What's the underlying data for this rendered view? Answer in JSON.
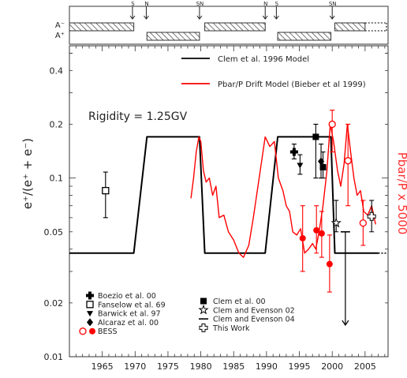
{
  "chart_data": {
    "type": "scatter",
    "y_scale": "log",
    "xlim": [
      1960,
      2008.5
    ],
    "ylim": [
      0.01,
      0.55
    ],
    "ylabel": "e⁺/(e⁺ + e⁻)",
    "ylabel_right": "Pbar/P x 5000",
    "annotation": "Rigidity = 1.25GV",
    "x_ticks": [
      1965,
      1970,
      1975,
      1980,
      1985,
      1990,
      1995,
      2000,
      2005
    ],
    "y_ticks": [
      {
        "v": 0.01,
        "label": "0.01"
      },
      {
        "v": 0.02,
        "label": "0.02"
      },
      {
        "v": 0.05,
        "label": "0.05"
      },
      {
        "v": 0.1,
        "label": "0.1"
      },
      {
        "v": 0.2,
        "label": "0.2"
      },
      {
        "v": 0.4,
        "label": "0.4"
      }
    ],
    "polarity": {
      "labels": [
        "A⁻",
        "A⁺"
      ],
      "markers": [
        {
          "year": 1969.6,
          "label": "S"
        },
        {
          "year": 1971.7,
          "label": "N"
        },
        {
          "year": 1979.8,
          "label": "SN"
        },
        {
          "year": 1989.8,
          "label": "N"
        },
        {
          "year": 1991.5,
          "label": "S"
        },
        {
          "year": 2000.0,
          "label": "SN"
        }
      ],
      "bars": [
        {
          "start": 1960,
          "end": 1969.8,
          "row": "upper"
        },
        {
          "start": 1971.8,
          "end": 1979.8,
          "row": "lower"
        },
        {
          "start": 1980.6,
          "end": 1989.8,
          "row": "upper"
        },
        {
          "start": 1991.7,
          "end": 1999.8,
          "row": "lower"
        },
        {
          "start": 2000.4,
          "end": 2005.0,
          "row": "upper"
        }
      ],
      "dotted_from": 2005.0
    },
    "legend_top": [
      {
        "label": "Clem et al. 1996 Model",
        "color": "#000000"
      },
      {
        "label": "Pbar/P Drift Model (Bieber et al 1999)",
        "color": "#ff0000"
      }
    ],
    "legend_bottom_left": [
      {
        "label": "Boezio et al. 00",
        "symbol": "cross"
      },
      {
        "label": "Fanselow et al. 69",
        "symbol": "square-open"
      },
      {
        "label": "Barwick et al. 97",
        "symbol": "triangle-down"
      },
      {
        "label": "Alcaraz et al. 00",
        "symbol": "diamond"
      },
      {
        "label": "BESS",
        "symbol": "circles-red"
      }
    ],
    "legend_bottom_right": [
      {
        "label": "Clem et al. 00",
        "symbol": "square-filled"
      },
      {
        "label": "Clem and Evenson 02",
        "symbol": "star"
      },
      {
        "label": "Clem and Evenson 04",
        "symbol": "dash"
      },
      {
        "label": "This Work",
        "symbol": "cross-open"
      }
    ],
    "series": [
      {
        "name": "Clem et al. 1996 Model",
        "color": "#000000",
        "points": [
          [
            1960,
            0.038
          ],
          [
            1969.8,
            0.038
          ],
          [
            1971.8,
            0.17
          ],
          [
            1979.8,
            0.17
          ],
          [
            1980.6,
            0.038
          ],
          [
            1989.8,
            0.038
          ],
          [
            1991.7,
            0.17
          ],
          [
            1999.8,
            0.17
          ],
          [
            2000.4,
            0.038
          ],
          [
            2007,
            0.038
          ]
        ],
        "dotted_to": 2008.5
      },
      {
        "name": "Pbar/P Drift Model (Bieber et al 1999)",
        "color": "#ff0000",
        "points": [
          [
            1978.5,
            0.077
          ],
          [
            1978.9,
            0.1
          ],
          [
            1979.3,
            0.14
          ],
          [
            1979.7,
            0.17
          ],
          [
            1980.0,
            0.16
          ],
          [
            1980.4,
            0.11
          ],
          [
            1980.8,
            0.095
          ],
          [
            1981.3,
            0.1
          ],
          [
            1981.8,
            0.08
          ],
          [
            1982.3,
            0.09
          ],
          [
            1982.8,
            0.06
          ],
          [
            1983.5,
            0.062
          ],
          [
            1984.2,
            0.05
          ],
          [
            1985.0,
            0.045
          ],
          [
            1985.8,
            0.038
          ],
          [
            1986.5,
            0.036
          ],
          [
            1987.3,
            0.042
          ],
          [
            1988.0,
            0.06
          ],
          [
            1988.6,
            0.085
          ],
          [
            1989.2,
            0.12
          ],
          [
            1989.8,
            0.17
          ],
          [
            1990.5,
            0.15
          ],
          [
            1991.2,
            0.16
          ],
          [
            1991.8,
            0.1
          ],
          [
            1992.5,
            0.085
          ],
          [
            1993.0,
            0.07
          ],
          [
            1993.5,
            0.065
          ],
          [
            1994.0,
            0.05
          ],
          [
            1994.6,
            0.048
          ],
          [
            1995.2,
            0.052
          ],
          [
            1995.8,
            0.038
          ],
          [
            1996.4,
            0.04
          ],
          [
            1997.0,
            0.043
          ],
          [
            1997.5,
            0.04
          ],
          [
            1998.0,
            0.05
          ],
          [
            1998.6,
            0.07
          ],
          [
            1999.2,
            0.11
          ],
          [
            1999.7,
            0.2
          ],
          [
            2000.2,
            0.16
          ],
          [
            2000.8,
            0.11
          ],
          [
            2001.3,
            0.09
          ],
          [
            2001.8,
            0.12
          ],
          [
            2002.3,
            0.2
          ],
          [
            2002.8,
            0.14
          ],
          [
            2003.3,
            0.1
          ],
          [
            2003.8,
            0.08
          ],
          [
            2004.3,
            0.085
          ],
          [
            2004.8,
            0.065
          ],
          [
            2005.4,
            0.062
          ],
          [
            2006.0,
            0.07
          ],
          [
            2006.6,
            0.055
          ]
        ]
      }
    ],
    "points": [
      {
        "source": "Fanselow et al. 69",
        "symbol": "square-open",
        "x": 1965.5,
        "y": 0.085,
        "lo": 0.06,
        "hi": 0.108
      },
      {
        "source": "Boezio et al. 00",
        "symbol": "cross",
        "x": 1994.2,
        "y": 0.14,
        "lo": 0.128,
        "hi": 0.155
      },
      {
        "source": "Barwick et al. 97",
        "symbol": "triangle-down",
        "x": 1995.1,
        "y": 0.118,
        "lo": 0.105,
        "hi": 0.135
      },
      {
        "source": "Clem et al. 00",
        "symbol": "square-filled",
        "x": 1997.5,
        "y": 0.17,
        "lo": 0.1,
        "hi": 0.2
      },
      {
        "source": "Alcaraz et al. 00",
        "symbol": "diamond",
        "x": 1998.3,
        "y": 0.124,
        "lo": 0.1,
        "hi": 0.155
      },
      {
        "source": "Clem et al. 00",
        "symbol": "square-filled",
        "x": 1998.6,
        "y": 0.115,
        "lo": 0.1,
        "hi": 0.14
      },
      {
        "source": "Clem and Evenson 02",
        "symbol": "star",
        "x": 2000.6,
        "y": 0.056,
        "lo": 0.05,
        "hi": 0.075
      },
      {
        "source": "Clem and Evenson 04",
        "symbol": "dash",
        "x": 2002.0,
        "y": 0.05,
        "upper_limit": true
      },
      {
        "source": "This Work",
        "symbol": "cross-open",
        "x": 2006.0,
        "y": 0.061,
        "lo": 0.05,
        "hi": 0.075
      },
      {
        "source": "BESS",
        "symbol": "circle-open",
        "x": 2000.0,
        "y": 0.2,
        "lo": 0.14,
        "hi": 0.24
      },
      {
        "source": "BESS",
        "symbol": "circle-open",
        "x": 2002.4,
        "y": 0.125,
        "lo": 0.07,
        "hi": 0.2
      },
      {
        "source": "BESS",
        "symbol": "circle-open",
        "x": 2004.7,
        "y": 0.056,
        "lo": 0.042,
        "hi": 0.075
      },
      {
        "source": "BESS",
        "symbol": "circle-filled",
        "x": 1995.5,
        "y": 0.046,
        "lo": 0.03,
        "hi": 0.07
      },
      {
        "source": "BESS",
        "symbol": "circle-filled",
        "x": 1997.6,
        "y": 0.051,
        "lo": 0.038,
        "hi": 0.07
      },
      {
        "source": "BESS",
        "symbol": "circle-filled",
        "x": 1998.4,
        "y": 0.049,
        "lo": 0.036,
        "hi": 0.065
      },
      {
        "source": "BESS",
        "symbol": "circle-filled",
        "x": 1999.6,
        "y": 0.033,
        "lo": 0.023,
        "hi": 0.048
      }
    ]
  }
}
